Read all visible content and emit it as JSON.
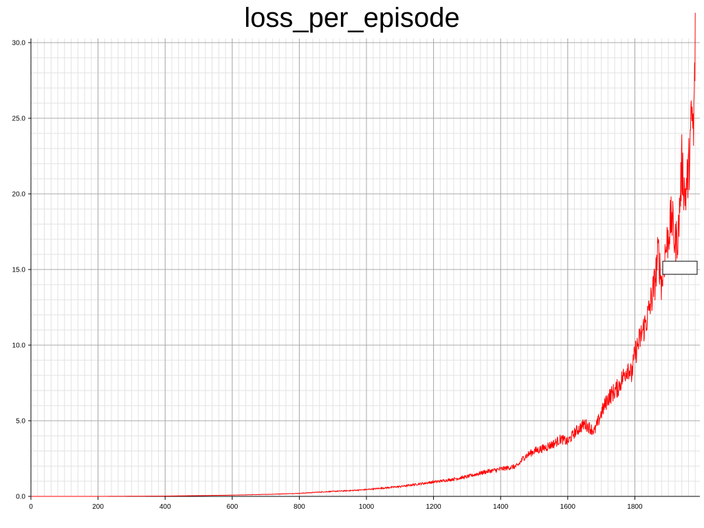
{
  "chart_data": {
    "type": "line",
    "title": "loss_per_episode",
    "xlabel": "",
    "ylabel": "",
    "xlim": [
      0,
      1980
    ],
    "ylim": [
      0,
      30.2
    ],
    "grid": true,
    "legend": "none",
    "x_ticks": [
      "0",
      "200",
      "400",
      "600",
      "800",
      "1000",
      "1200",
      "1400",
      "1600",
      "1800"
    ],
    "y_ticks": [
      "0.0",
      "5.0",
      "10.0",
      "15.0",
      "20.0",
      "25.0",
      "30.0"
    ],
    "series": [
      {
        "color": "#ff0000",
        "x": [
          0,
          200,
          400,
          500,
          600,
          700,
          800,
          850,
          900,
          950,
          1000,
          1050,
          1100,
          1150,
          1200,
          1250,
          1300,
          1350,
          1400,
          1450,
          1470,
          1500,
          1530,
          1560,
          1580,
          1600,
          1620,
          1650,
          1680,
          1700,
          1720,
          1750,
          1780,
          1790,
          1800,
          1820,
          1840,
          1860,
          1870,
          1880,
          1890,
          1900,
          1910,
          1920,
          1930,
          1940,
          1950,
          1960,
          1970,
          1975,
          1980
        ],
        "y": [
          0.0,
          0.0,
          0.02,
          0.05,
          0.08,
          0.13,
          0.2,
          0.27,
          0.33,
          0.38,
          0.45,
          0.55,
          0.65,
          0.8,
          0.95,
          1.1,
          1.3,
          1.6,
          1.8,
          2.0,
          2.6,
          3.0,
          3.2,
          3.5,
          3.8,
          3.6,
          4.2,
          4.8,
          4.3,
          5.5,
          6.5,
          7.2,
          8.6,
          8.0,
          9.4,
          10.7,
          12.0,
          14.2,
          16.2,
          14.0,
          16.0,
          17.3,
          18.5,
          16.6,
          17.5,
          22.0,
          19.8,
          21.5,
          25.2,
          23.8,
          30.2
        ]
      }
    ]
  },
  "annotations": {
    "box_text": ""
  }
}
